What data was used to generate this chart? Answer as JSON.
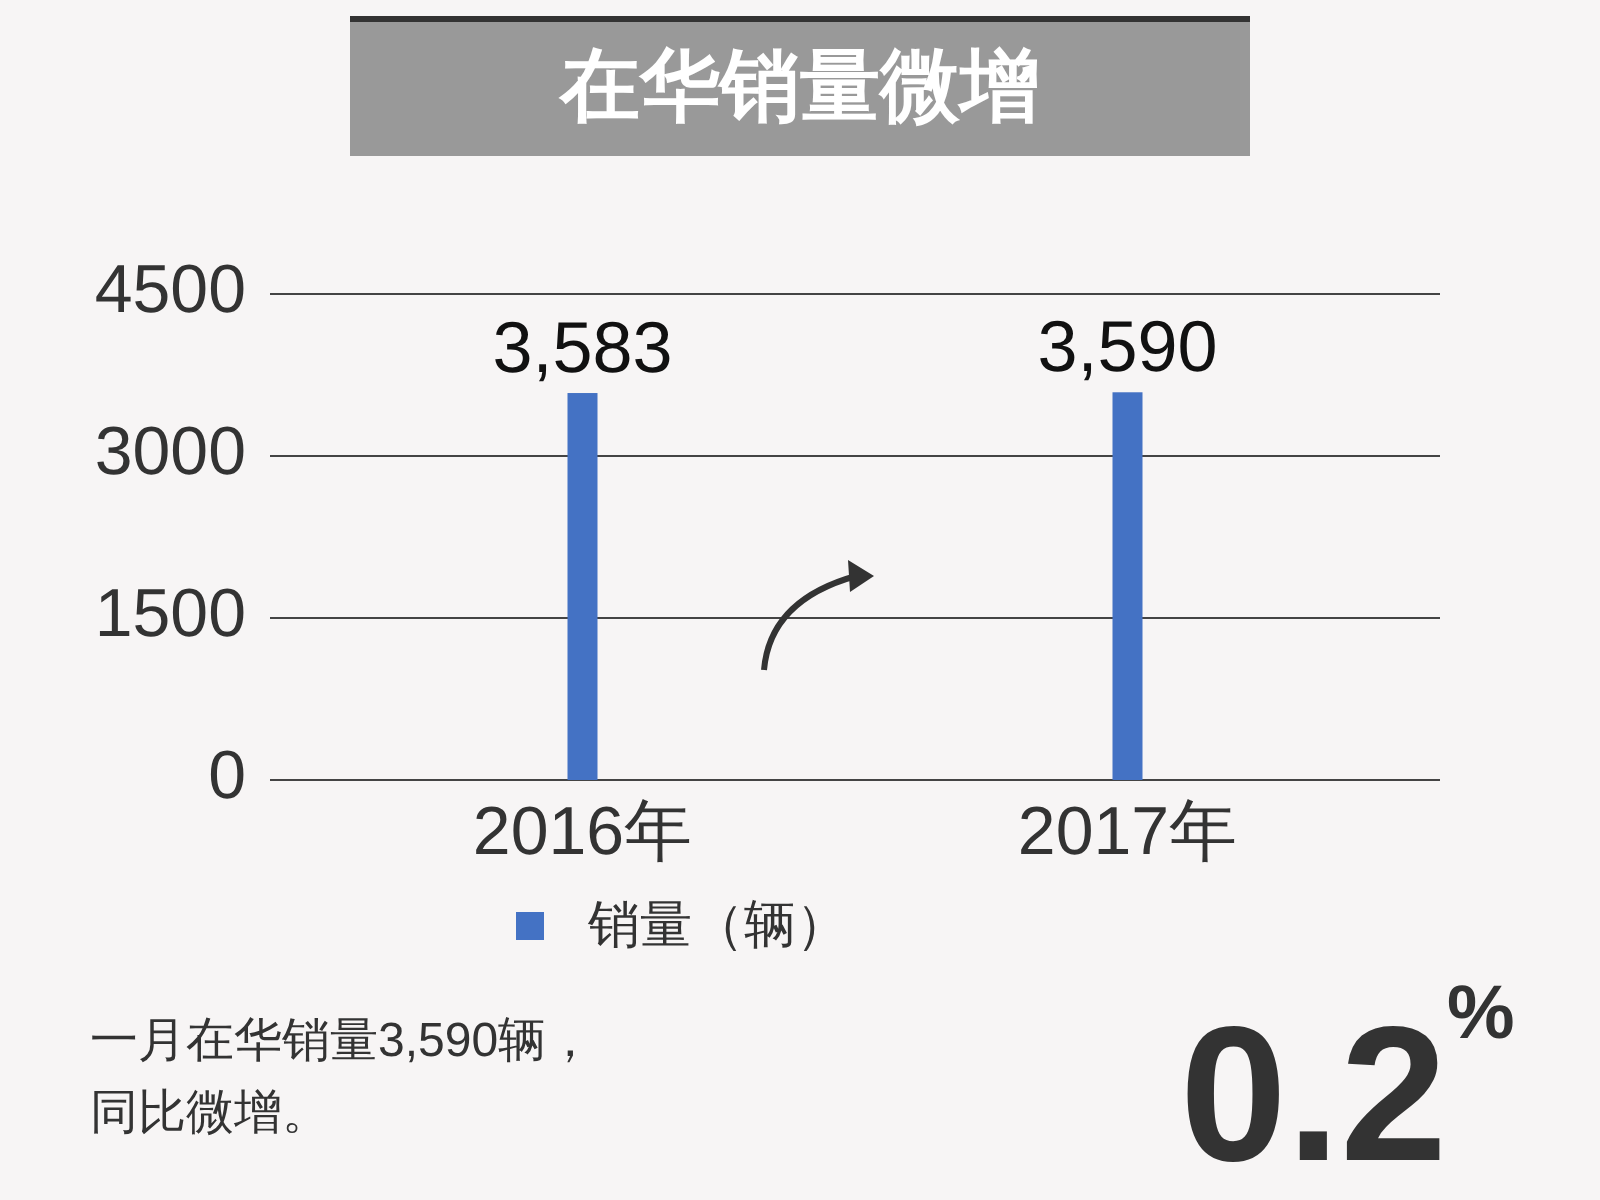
{
  "chart_data": {
    "type": "bar",
    "title": "在华销量微增",
    "categories": [
      "2016年",
      "2017年"
    ],
    "series": [
      {
        "name": "销量（辆）",
        "color": "#4472c4",
        "values": [
          3583,
          3590
        ],
        "value_labels": [
          "3,583",
          "3,590"
        ]
      }
    ],
    "ylim": [
      0,
      4500
    ],
    "yticks": [
      0,
      1500,
      3000,
      4500
    ],
    "grid": "y",
    "legend": "bottom",
    "annotations": [
      "一月在华销量3,590辆，",
      "同比微增。",
      "0.2$^{%}$"
    ]
  }
}
